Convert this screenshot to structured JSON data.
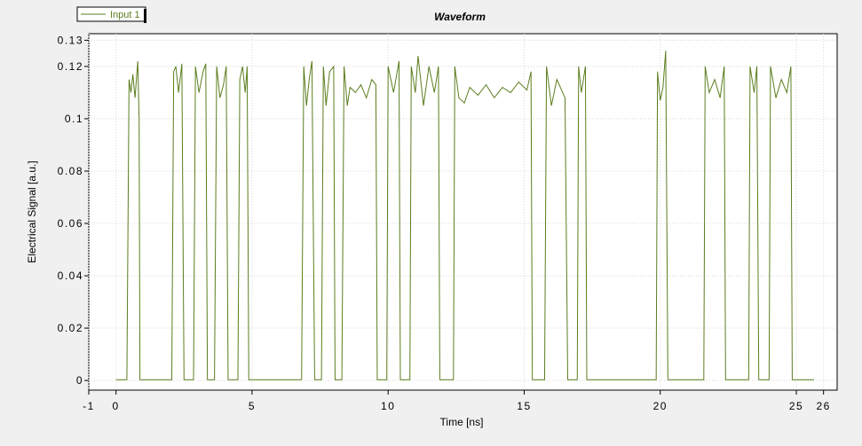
{
  "chart_data": {
    "type": "line",
    "title": "Waveform",
    "xlabel": "Time [ns]",
    "ylabel": "Electrical Signal [a.u.]",
    "xlim": [
      -1,
      26.5
    ],
    "ylim": [
      -0.0037,
      0.1325
    ],
    "xticks": [
      -1,
      0,
      5,
      10,
      15,
      20,
      25,
      26
    ],
    "yticks": [
      0,
      0.02,
      0.04,
      0.06,
      0.08,
      0.1,
      0.12,
      0.13
    ],
    "grid": true,
    "legend": "top-left",
    "x": [
      0,
      0.4,
      0.48,
      0.55,
      0.62,
      0.7,
      0.8,
      0.85,
      0.88,
      2.05,
      2.12,
      2.2,
      2.3,
      2.42,
      2.5,
      2.85,
      2.92,
      3.05,
      3.2,
      3.3,
      3.36,
      3.62,
      3.7,
      3.82,
      3.95,
      4.05,
      4.12,
      4.48,
      4.55,
      4.65,
      4.75,
      4.82,
      4.88,
      6.82,
      6.9,
      7.0,
      7.1,
      7.2,
      7.3,
      7.55,
      7.62,
      7.72,
      7.85,
      8.0,
      8.05,
      8.3,
      8.38,
      8.5,
      8.6,
      8.8,
      9.0,
      9.2,
      9.4,
      9.55,
      9.6,
      9.95,
      10.0,
      10.2,
      10.4,
      10.45,
      10.8,
      10.85,
      11.0,
      11.1,
      11.3,
      11.5,
      11.7,
      11.85,
      11.9,
      12.4,
      12.45,
      12.6,
      12.8,
      13.0,
      13.3,
      13.6,
      13.9,
      14.2,
      14.5,
      14.8,
      15.1,
      15.25,
      15.3,
      15.75,
      15.82,
      16.0,
      16.2,
      16.5,
      16.6,
      16.95,
      17.0,
      17.1,
      17.25,
      17.3,
      19.85,
      19.9,
      20.0,
      20.1,
      20.2,
      20.28,
      21.6,
      21.65,
      21.8,
      22.0,
      22.2,
      22.35,
      22.4,
      23.25,
      23.3,
      23.45,
      23.55,
      23.62,
      24.0,
      24.05,
      24.25,
      24.45,
      24.65,
      24.8,
      24.85,
      25.65
    ],
    "series": [
      {
        "name": "Input 1",
        "color": "#5b7d1e",
        "values": [
          0.0003,
          0.0003,
          0.115,
          0.11,
          0.117,
          0.108,
          0.122,
          0.1,
          0.0003,
          0.0003,
          0.118,
          0.12,
          0.11,
          0.121,
          0.0003,
          0.0003,
          0.12,
          0.11,
          0.118,
          0.121,
          0.0003,
          0.0003,
          0.12,
          0.108,
          0.113,
          0.12,
          0.0003,
          0.0003,
          0.115,
          0.12,
          0.11,
          0.12,
          0.0003,
          0.0003,
          0.12,
          0.105,
          0.115,
          0.122,
          0.0003,
          0.0003,
          0.12,
          0.105,
          0.118,
          0.12,
          0.0003,
          0.0003,
          0.12,
          0.105,
          0.112,
          0.11,
          0.113,
          0.108,
          0.115,
          0.113,
          0.0003,
          0.0003,
          0.12,
          0.11,
          0.122,
          0.0003,
          0.0003,
          0.12,
          0.11,
          0.124,
          0.105,
          0.12,
          0.11,
          0.12,
          0.0003,
          0.0003,
          0.12,
          0.108,
          0.106,
          0.112,
          0.109,
          0.113,
          0.108,
          0.112,
          0.11,
          0.114,
          0.111,
          0.118,
          0.0003,
          0.0003,
          0.12,
          0.105,
          0.115,
          0.108,
          0.0003,
          0.0003,
          0.12,
          0.11,
          0.12,
          0.0003,
          0.0003,
          0.118,
          0.107,
          0.112,
          0.126,
          0.0003,
          0.0003,
          0.12,
          0.11,
          0.115,
          0.108,
          0.12,
          0.0003,
          0.0003,
          0.12,
          0.11,
          0.12,
          0.0003,
          0.0003,
          0.12,
          0.108,
          0.115,
          0.11,
          0.12,
          0.0003,
          0.0003
        ]
      }
    ]
  }
}
